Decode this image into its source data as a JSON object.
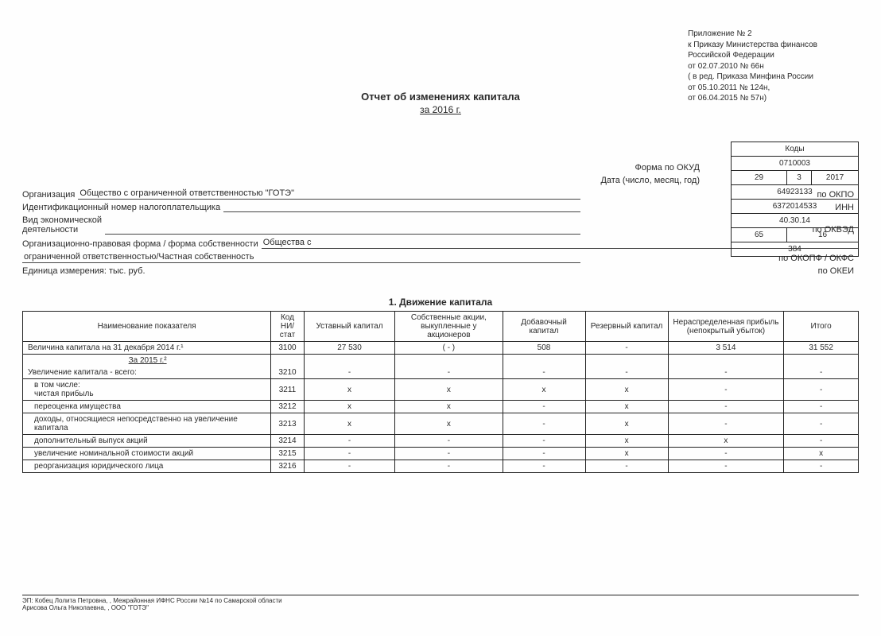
{
  "appendix": {
    "l1": "Приложение № 2",
    "l2": "к Приказу Министерства финансов",
    "l3": "Российской Федерации",
    "l4": "от 02.07.2010 № 66н",
    "l5": "( в ред. Приказа Минфина России",
    "l6": "от 05.10.2011 № 124н,",
    "l7": "от 06.04.2015 № 57н)"
  },
  "title": "Отчет об изменениях капитала",
  "year_line": "за 2016 г.",
  "codes": {
    "header": "Коды",
    "okud_label": "Форма по ОКУД",
    "okud": "0710003",
    "date_label": "Дата (число, месяц, год)",
    "date_d": "29",
    "date_m": "3",
    "date_y": "2017",
    "okpo_label": "по ОКПО",
    "okpo": "64923133",
    "inn_label": "ИНН",
    "inn": "6372014533",
    "okved_label": "по ОКВЭД",
    "okved": "40.30.14",
    "okopf_label": "по ОКОПФ / ОКФС",
    "okopf1": "65",
    "okopf2": "16",
    "okei_label": "по ОКЕИ",
    "okei": "384"
  },
  "meta": {
    "org_label": "Организация",
    "org_value": "Общество с ограниченной ответственностью \"ГОТЭ\"",
    "inn_label": "Идентификационный номер налогоплательщика",
    "inn_value": "",
    "activity_label1": "Вид экономической",
    "activity_label2": "деятельности",
    "activity_value": "",
    "form_label": "Организационно-правовая форма / форма собственности",
    "form_value": "Общества с",
    "form_value2": "ограниченной ответственностью/Частная собственность",
    "unit_label": "Единица измерения: тыс. руб."
  },
  "section1_title": "1. Движение капитала",
  "table": {
    "columns": [
      "Наименование показателя",
      "Код НИ/ стат",
      "Уставный капитал",
      "Собственные акции, выкупленные у акционеров",
      "Добавочный капитал",
      "Резервный капитал",
      "Нераспределенная прибыль (непокрытый убыток)",
      "Итого"
    ],
    "rows": [
      {
        "name": "Величина капитала на 31 декабря 2014 г.¹",
        "code": "3100",
        "c3": "27 530",
        "c4": "(                -              )",
        "c5": "508",
        "c6": "-",
        "c7": "3 514",
        "c8": "31 552",
        "indent": 0
      },
      {
        "name": "За 2015 г.²",
        "subyear": true
      },
      {
        "name": "Увеличение капитала - всего:",
        "code": "3210",
        "c3": "-",
        "c4": "-",
        "c5": "-",
        "c6": "-",
        "c7": "-",
        "c8": "-",
        "indent": 0
      },
      {
        "name": "в том числе:\nчистая прибыль",
        "code": "3211",
        "c3": "x",
        "c4": "x",
        "c5": "x",
        "c6": "x",
        "c7": "-",
        "c8": "-",
        "indent": 1
      },
      {
        "name": "переоценка имущества",
        "code": "3212",
        "c3": "x",
        "c4": "x",
        "c5": "-",
        "c6": "x",
        "c7": "-",
        "c8": "-",
        "indent": 1
      },
      {
        "name": "доходы, относящиеся непосредственно на увеличение капитала",
        "code": "3213",
        "c3": "x",
        "c4": "x",
        "c5": "-",
        "c6": "x",
        "c7": "-",
        "c8": "-",
        "indent": 1
      },
      {
        "name": "дополнительный выпуск акций",
        "code": "3214",
        "c3": "-",
        "c4": "-",
        "c5": "-",
        "c6": "x",
        "c7": "x",
        "c8": "-",
        "indent": 1
      },
      {
        "name": "увеличение номинальной стоимости акций",
        "code": "3215",
        "c3": "-",
        "c4": "-",
        "c5": "-",
        "c6": "x",
        "c7": "-",
        "c8": "x",
        "indent": 1
      },
      {
        "name": "реорганизация юридического лица",
        "code": "3216",
        "c3": "-",
        "c4": "-",
        "c5": "-",
        "c6": "-",
        "c7": "-",
        "c8": "-",
        "indent": 1
      }
    ],
    "col_widths": [
      "300",
      "40",
      "110",
      "130",
      "100",
      "100",
      "140",
      "90"
    ]
  },
  "footer": {
    "l1": "ЭП: Кобец Лолита Петровна, , Межрайонная ИФНС России №14 по Самарской области",
    "l2": "Арисова Ольга Николаевна, , ООО \"ГОТЭ\""
  }
}
